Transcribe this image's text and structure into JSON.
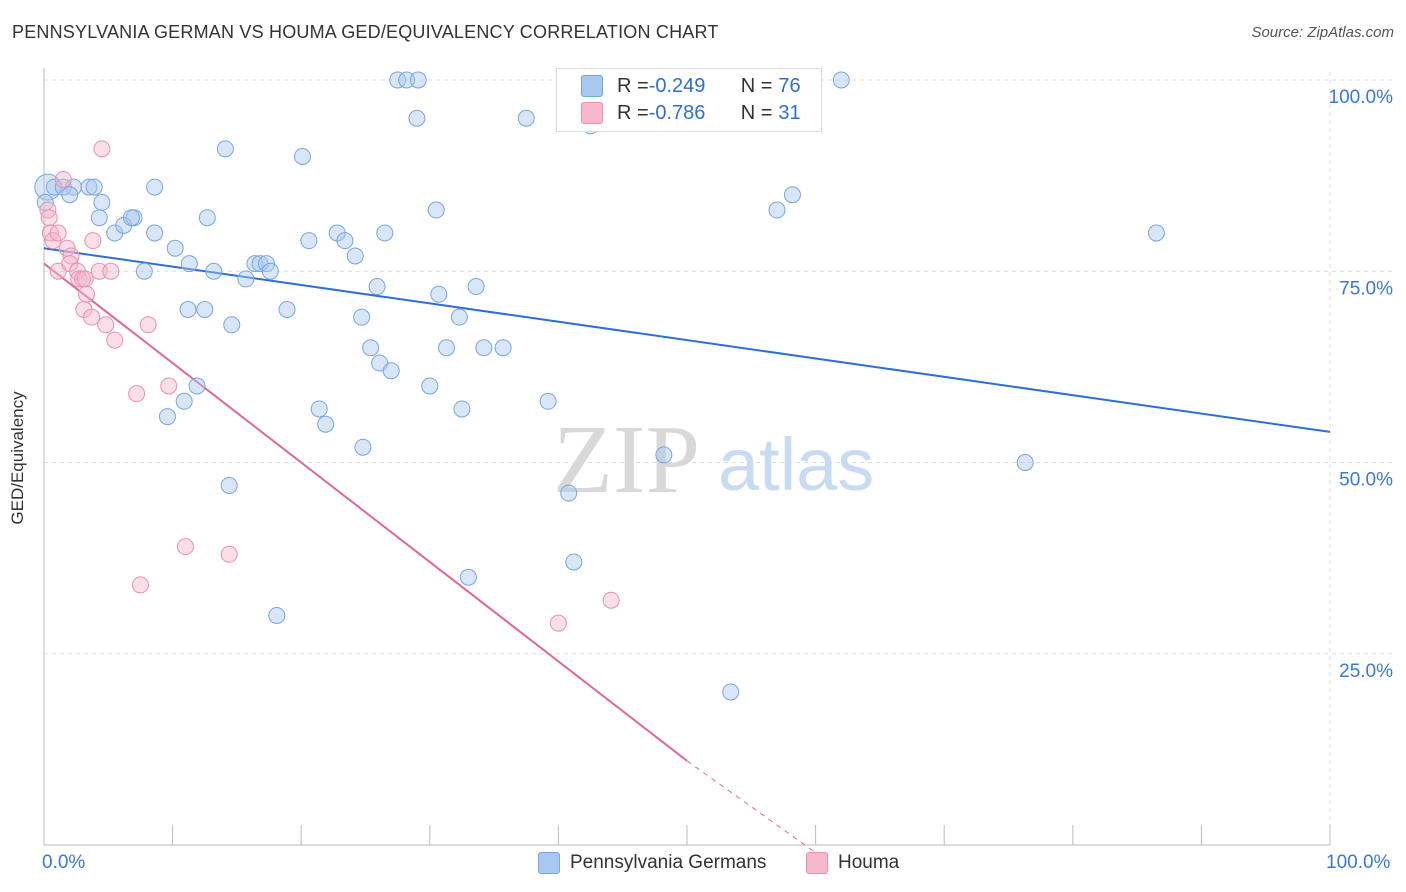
{
  "title": "PENNSYLVANIA GERMAN VS HOUMA GED/EQUIVALENCY CORRELATION CHART",
  "source": "Source: ZipAtlas.com",
  "watermark": {
    "part1": "ZIP",
    "part2": "atlas"
  },
  "colors": {
    "blue_fill": "#a8c8f0",
    "blue_stroke": "#7aa6e0",
    "blue_line": "#2f6fd1",
    "pink_fill": "#f5b8cc",
    "pink_stroke": "#ec8fb0",
    "pink_line": "#e06898",
    "axis_label": "#3c78d8",
    "grid": "#dddddd"
  },
  "legend": {
    "series1": {
      "r_label": "R = ",
      "r_value": "-0.249",
      "n_label": "N = ",
      "n_value": "76"
    },
    "series2": {
      "r_label": "R = ",
      "r_value": "-0.786",
      "n_label": "N = ",
      "n_value": "31"
    }
  },
  "chart_data": {
    "type": "scatter",
    "ylabel": "GED/Equivalency",
    "x_tick_labels": [
      "0.0%",
      "100.0%"
    ],
    "y_tick_labels": [
      "100.0%",
      "75.0%",
      "50.0%",
      "25.0%"
    ],
    "y_ticks": [
      100,
      75,
      50,
      25
    ],
    "xlim": [
      0,
      100
    ],
    "ylim": [
      0,
      105
    ],
    "grid": true,
    "legend_placement": "top-center",
    "series": [
      {
        "name": "Pennsylvania Germans",
        "color": "#a8c8f0",
        "points": [
          [
            0.3,
            86
          ],
          [
            0.8,
            86
          ],
          [
            1.5,
            86
          ],
          [
            2.3,
            86
          ],
          [
            2.0,
            85
          ],
          [
            3.5,
            86
          ],
          [
            4.5,
            84
          ],
          [
            3.9,
            86
          ],
          [
            4.3,
            82
          ],
          [
            5.5,
            80
          ],
          [
            6.2,
            81
          ],
          [
            7.0,
            82
          ],
          [
            6.8,
            82
          ],
          [
            8.6,
            80
          ],
          [
            8.6,
            86
          ],
          [
            7.8,
            75
          ],
          [
            10.2,
            78
          ],
          [
            11.3,
            76
          ],
          [
            12.7,
            82
          ],
          [
            13.2,
            75
          ],
          [
            12.5,
            70
          ],
          [
            11.2,
            70
          ],
          [
            9.6,
            56
          ],
          [
            10.9,
            58
          ],
          [
            11.9,
            60
          ],
          [
            14.1,
            91
          ],
          [
            14.6,
            68
          ],
          [
            14.4,
            47
          ],
          [
            15.7,
            74
          ],
          [
            16.4,
            76
          ],
          [
            16.8,
            76
          ],
          [
            17.3,
            76
          ],
          [
            17.6,
            75
          ],
          [
            18.9,
            70
          ],
          [
            20.1,
            90
          ],
          [
            20.6,
            79
          ],
          [
            21.4,
            57
          ],
          [
            21.9,
            55
          ],
          [
            22.8,
            80
          ],
          [
            23.4,
            79
          ],
          [
            24.2,
            77
          ],
          [
            24.7,
            69
          ],
          [
            24.8,
            52
          ],
          [
            25.4,
            65
          ],
          [
            25.9,
            73
          ],
          [
            26.1,
            63
          ],
          [
            26.5,
            80
          ],
          [
            27.0,
            62
          ],
          [
            27.5,
            100
          ],
          [
            28.2,
            100
          ],
          [
            29.1,
            100
          ],
          [
            29.0,
            95
          ],
          [
            30.0,
            60
          ],
          [
            30.5,
            83
          ],
          [
            30.7,
            72
          ],
          [
            31.3,
            65
          ],
          [
            32.3,
            69
          ],
          [
            32.5,
            57
          ],
          [
            33.0,
            35
          ],
          [
            33.6,
            73
          ],
          [
            34.2,
            65
          ],
          [
            35.7,
            65
          ],
          [
            37.5,
            95
          ],
          [
            39.2,
            58
          ],
          [
            40.8,
            46
          ],
          [
            41.2,
            37
          ],
          [
            42.5,
            94
          ],
          [
            48.2,
            51
          ],
          [
            53.4,
            20
          ],
          [
            57.0,
            83
          ],
          [
            58.2,
            85
          ],
          [
            62.0,
            100
          ],
          [
            18.1,
            30
          ],
          [
            76.3,
            50
          ],
          [
            86.5,
            80
          ],
          [
            0.1,
            84
          ]
        ]
      },
      {
        "name": "Houma",
        "color": "#f5b8cc",
        "points": [
          [
            0.3,
            83
          ],
          [
            0.4,
            82
          ],
          [
            0.5,
            80
          ],
          [
            0.7,
            79
          ],
          [
            1.1,
            80
          ],
          [
            1.5,
            87
          ],
          [
            1.1,
            75
          ],
          [
            1.8,
            78
          ],
          [
            2.1,
            77
          ],
          [
            2.0,
            76
          ],
          [
            2.6,
            75
          ],
          [
            2.7,
            74
          ],
          [
            3.0,
            74
          ],
          [
            3.1,
            70
          ],
          [
            3.2,
            74
          ],
          [
            3.3,
            72
          ],
          [
            3.7,
            69
          ],
          [
            3.8,
            79
          ],
          [
            4.3,
            75
          ],
          [
            4.5,
            91
          ],
          [
            4.8,
            68
          ],
          [
            5.2,
            75
          ],
          [
            5.5,
            66
          ],
          [
            7.2,
            59
          ],
          [
            8.1,
            68
          ],
          [
            9.7,
            60
          ],
          [
            7.5,
            34
          ],
          [
            11.0,
            39
          ],
          [
            14.4,
            38
          ],
          [
            40.0,
            29
          ],
          [
            44.1,
            32
          ]
        ]
      }
    ],
    "trend_lines": [
      {
        "series": "Pennsylvania Germans",
        "x": [
          0,
          100
        ],
        "y": [
          78,
          54
        ]
      },
      {
        "series": "Houma",
        "x": [
          0,
          50
        ],
        "y": [
          76,
          11
        ],
        "dashed_extension_to": [
          60,
          -1
        ]
      }
    ]
  }
}
